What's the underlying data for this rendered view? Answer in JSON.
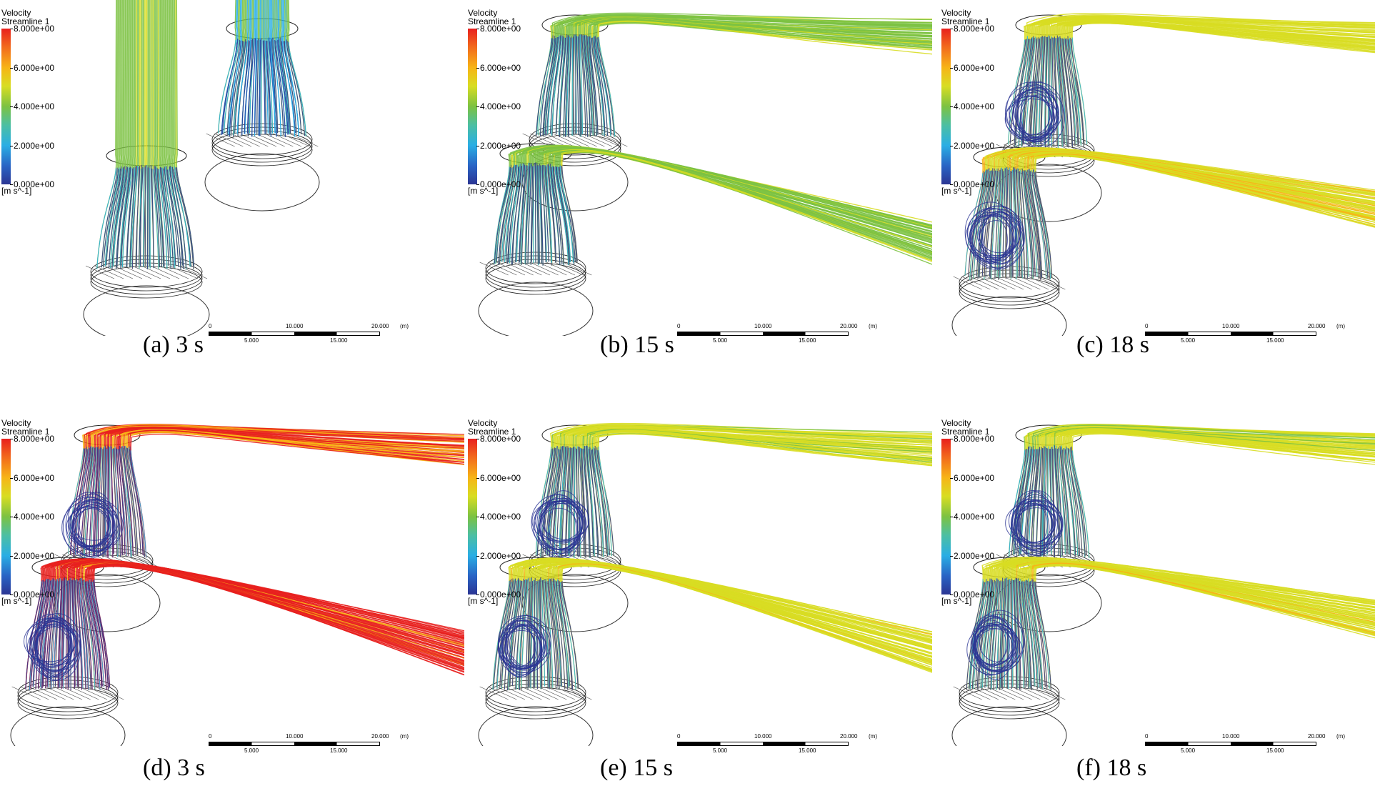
{
  "legend": {
    "title": "Velocity",
    "subtitle": "Streamline 1",
    "ticks": [
      "8.000e+00",
      "6.000e+00",
      "4.000e+00",
      "2.000e+00",
      "0.000e+00"
    ],
    "unit": "[m s^-1]"
  },
  "scale_bar": {
    "top_labels": [
      "0",
      "10.000",
      "20.000"
    ],
    "unit": "(m)",
    "bottom_labels": [
      "5.000",
      "15.000"
    ]
  },
  "captions": [
    "(a) 3 s",
    "(b) 15 s",
    "(c) 18 s",
    "(d) 3 s",
    "(e) 15 s",
    "(f) 18 s"
  ],
  "colors": {
    "v_low": "#2b3593",
    "v_mid_low": "#2aaee4",
    "v_mid": "#7cc242",
    "v_mid_high": "#d8dd22",
    "v_high": "#f7b416",
    "v_max": "#e8201e"
  }
}
